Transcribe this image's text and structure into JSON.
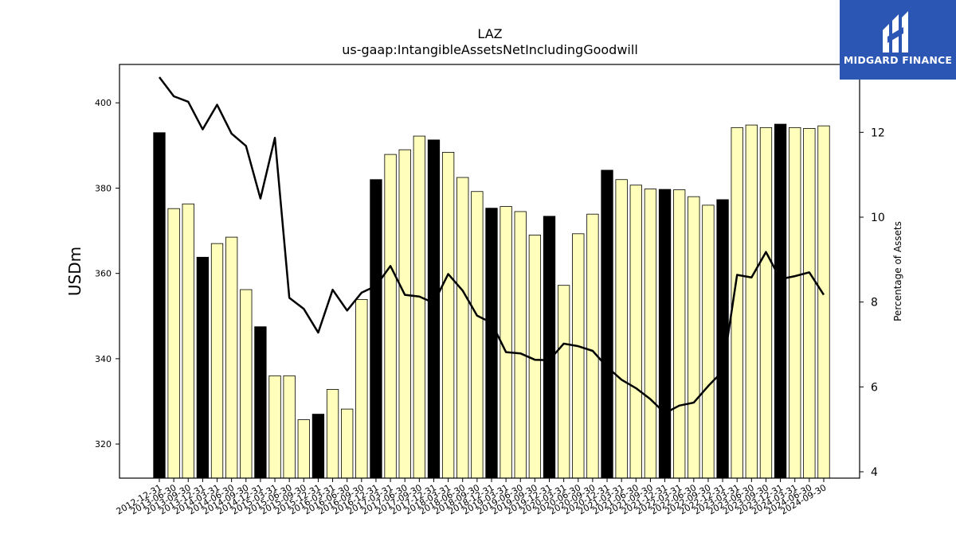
{
  "logo": {
    "text": "MIDGARD FINANCE"
  },
  "chart_data": {
    "type": "bar",
    "title": "LAZ",
    "subtitle": "us-gaap:IntangibleAssetsNetIncludingGoodwill",
    "ylabel": "USDm",
    "y2label": "Percentage of Assets",
    "ylim": [
      312,
      409
    ],
    "y2lim": [
      3.85,
      13.6
    ],
    "yticks": [
      320,
      340,
      360,
      380,
      400
    ],
    "y2ticks": [
      4,
      6,
      8,
      10,
      12
    ],
    "grid": false,
    "colors": {
      "annual_bar": "#000000",
      "quarter_bar": "#ffffbb",
      "line": "#000000"
    },
    "categories": [
      "2012-12-31",
      "2013-06-30",
      "2013-09-30",
      "2013-12-31",
      "2014-03-31",
      "2014-06-30",
      "2014-09-30",
      "2014-12-31",
      "2015-03-31",
      "2015-06-30",
      "2015-09-30",
      "2015-12-31",
      "2016-03-31",
      "2016-06-30",
      "2016-09-30",
      "2016-12-31",
      "2017-03-31",
      "2017-06-30",
      "2017-09-30",
      "2017-12-31",
      "2018-03-31",
      "2018-06-30",
      "2018-09-30",
      "2018-12-31",
      "2019-03-31",
      "2019-06-30",
      "2019-09-30",
      "2019-12-31",
      "2020-03-31",
      "2020-06-30",
      "2020-09-30",
      "2020-12-31",
      "2021-03-31",
      "2021-06-30",
      "2021-09-30",
      "2021-12-31",
      "2022-03-31",
      "2022-06-30",
      "2022-09-30",
      "2022-12-31",
      "2023-03-31",
      "2023-06-30",
      "2023-09-30",
      "2023-12-31",
      "2024-03-31",
      "2024-06-30",
      "2024-09-30"
    ],
    "series": [
      {
        "type": "bar",
        "values": [
          393,
          375.2,
          376.3,
          363.8,
          367,
          368.5,
          356.2,
          347.5,
          336,
          336,
          325.7,
          327,
          332.8,
          328.2,
          353.9,
          382,
          387.9,
          389,
          392.2,
          391.3,
          388.4,
          382.5,
          379.2,
          375.3,
          375.7,
          374.5,
          369,
          373.4,
          357.2,
          369.3,
          373.9,
          384.2,
          382,
          380.7,
          379.8,
          379.7,
          379.6,
          378,
          376,
          377.3,
          394.2,
          394.8,
          394.2,
          395,
          394.2,
          394,
          394.6
        ],
        "annual": [
          true,
          false,
          false,
          true,
          false,
          false,
          false,
          true,
          false,
          false,
          false,
          true,
          false,
          false,
          false,
          true,
          false,
          false,
          false,
          true,
          false,
          false,
          false,
          true,
          false,
          false,
          false,
          true,
          false,
          false,
          false,
          true,
          false,
          false,
          false,
          true,
          false,
          false,
          false,
          true,
          false,
          false,
          false,
          true,
          false,
          false,
          false
        ]
      },
      {
        "type": "line",
        "axis": "right",
        "values": [
          13.3,
          12.85,
          12.72,
          12.07,
          12.65,
          11.97,
          11.68,
          10.44,
          11.87,
          8.1,
          7.84,
          7.28,
          8.29,
          7.8,
          8.22,
          8.38,
          8.85,
          8.17,
          8.13,
          7.98,
          8.66,
          8.27,
          7.68,
          7.51,
          6.82,
          6.79,
          6.64,
          6.63,
          7.02,
          6.96,
          6.85,
          6.47,
          6.17,
          5.97,
          5.71,
          5.38,
          5.56,
          5.63,
          6.02,
          6.37,
          8.64,
          8.58,
          9.18,
          8.54,
          8.61,
          8.7,
          8.17
        ]
      }
    ]
  }
}
